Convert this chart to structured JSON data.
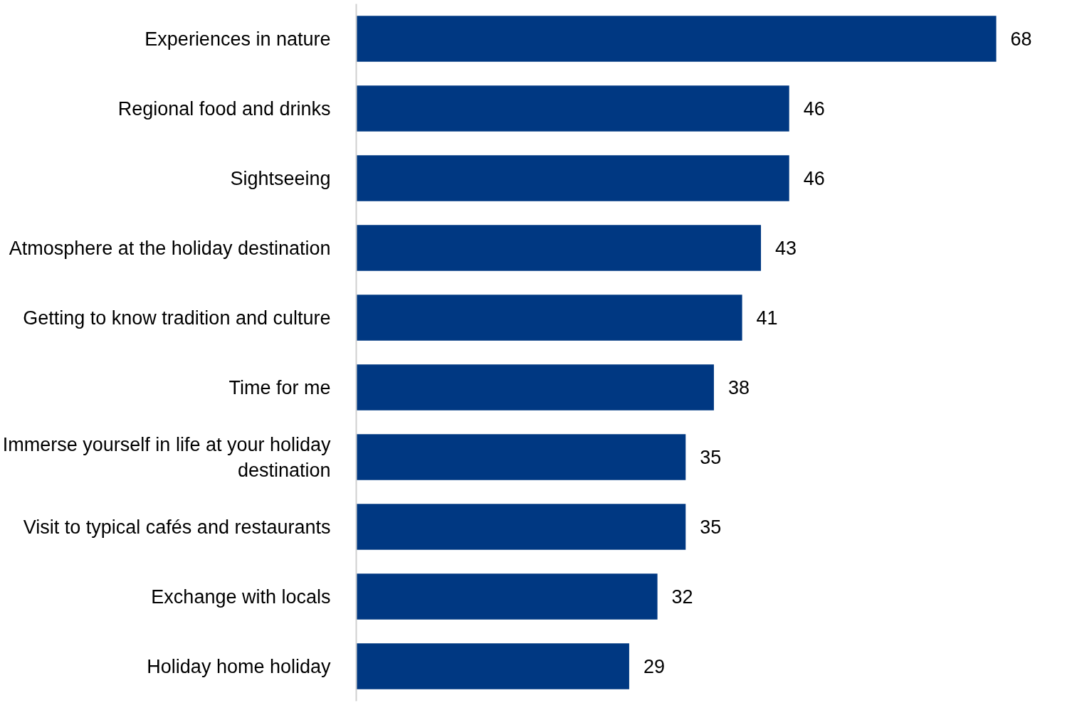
{
  "chart_data": {
    "type": "bar",
    "orientation": "horizontal",
    "categories": [
      "Experiences in nature",
      "Regional food and drinks",
      "Sightseeing",
      "Atmosphere at the holiday destination",
      "Getting to know tradition and culture",
      "Time for me",
      "Immerse yourself in life at your holiday destination",
      "Visit to typical cafés and restaurants",
      "Exchange with locals",
      "Holiday home holiday"
    ],
    "series": [
      {
        "color": "#003882",
        "values": [
          68,
          46,
          46,
          43,
          41,
          38,
          35,
          35,
          32,
          29
        ]
      }
    ],
    "data_labels": true,
    "grid": false
  }
}
